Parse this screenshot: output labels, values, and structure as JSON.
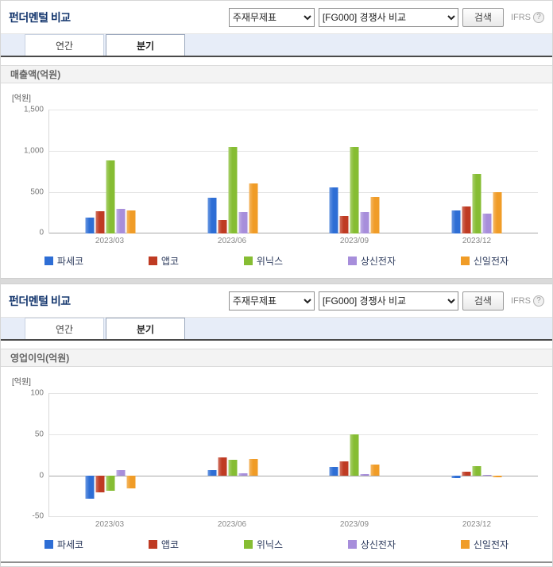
{
  "panels": [
    {
      "title": "펀더멘털 비교",
      "controls": {
        "statement_select": "주재무제표",
        "compare_select": "[FG000] 경쟁사 비교",
        "search_label": "검색",
        "ifrs_label": "IFRS"
      },
      "tabs": [
        {
          "label": "연간",
          "selected": false
        },
        {
          "label": "분기",
          "selected": true
        }
      ],
      "section_title": "매출액(억원)"
    },
    {
      "title": "펀더멘털 비교",
      "controls": {
        "statement_select": "주재무제표",
        "compare_select": "[FG000] 경쟁사 비교",
        "search_label": "검색",
        "ifrs_label": "IFRS"
      },
      "tabs": [
        {
          "label": "연간",
          "selected": false
        },
        {
          "label": "분기",
          "selected": true
        }
      ],
      "section_title": "영업이익(억원)"
    }
  ],
  "chart_data": [
    {
      "type": "bar",
      "title": "매출액(억원)",
      "unit_label": "[억원]",
      "categories": [
        "2023/03",
        "2023/06",
        "2023/09",
        "2023/12"
      ],
      "series": [
        {
          "name": "파세코",
          "color": "#2e6ed5",
          "values": [
            190,
            430,
            560,
            280
          ]
        },
        {
          "name": "앱코",
          "color": "#bf3b23",
          "values": [
            270,
            160,
            210,
            330
          ]
        },
        {
          "name": "위닉스",
          "color": "#86bd33",
          "values": [
            880,
            1050,
            1050,
            720
          ]
        },
        {
          "name": "상신전자",
          "color": "#a78edb",
          "values": [
            300,
            260,
            260,
            240
          ]
        },
        {
          "name": "신일전자",
          "color": "#f09c27",
          "values": [
            280,
            610,
            440,
            500
          ]
        }
      ],
      "ylim": [
        0,
        1500
      ],
      "yticks": [
        0,
        500,
        1000,
        1500
      ],
      "grid": true,
      "legend_position": "bottom"
    },
    {
      "type": "bar",
      "title": "영업이익(억원)",
      "unit_label": "[억원]",
      "categories": [
        "2023/03",
        "2023/06",
        "2023/09",
        "2023/12"
      ],
      "series": [
        {
          "name": "파세코",
          "color": "#2e6ed5",
          "values": [
            -28,
            7,
            11,
            -3
          ]
        },
        {
          "name": "앱코",
          "color": "#bf3b23",
          "values": [
            -20,
            22,
            17,
            5
          ]
        },
        {
          "name": "위닉스",
          "color": "#86bd33",
          "values": [
            -18,
            19,
            50,
            12
          ]
        },
        {
          "name": "상신전자",
          "color": "#a78edb",
          "values": [
            7,
            3,
            2,
            1
          ]
        },
        {
          "name": "신일전자",
          "color": "#f09c27",
          "values": [
            -15,
            20,
            13,
            -2
          ]
        }
      ],
      "ylim": [
        -50,
        100
      ],
      "yticks": [
        -50,
        0,
        50,
        100
      ],
      "grid": true,
      "legend_position": "bottom"
    }
  ]
}
